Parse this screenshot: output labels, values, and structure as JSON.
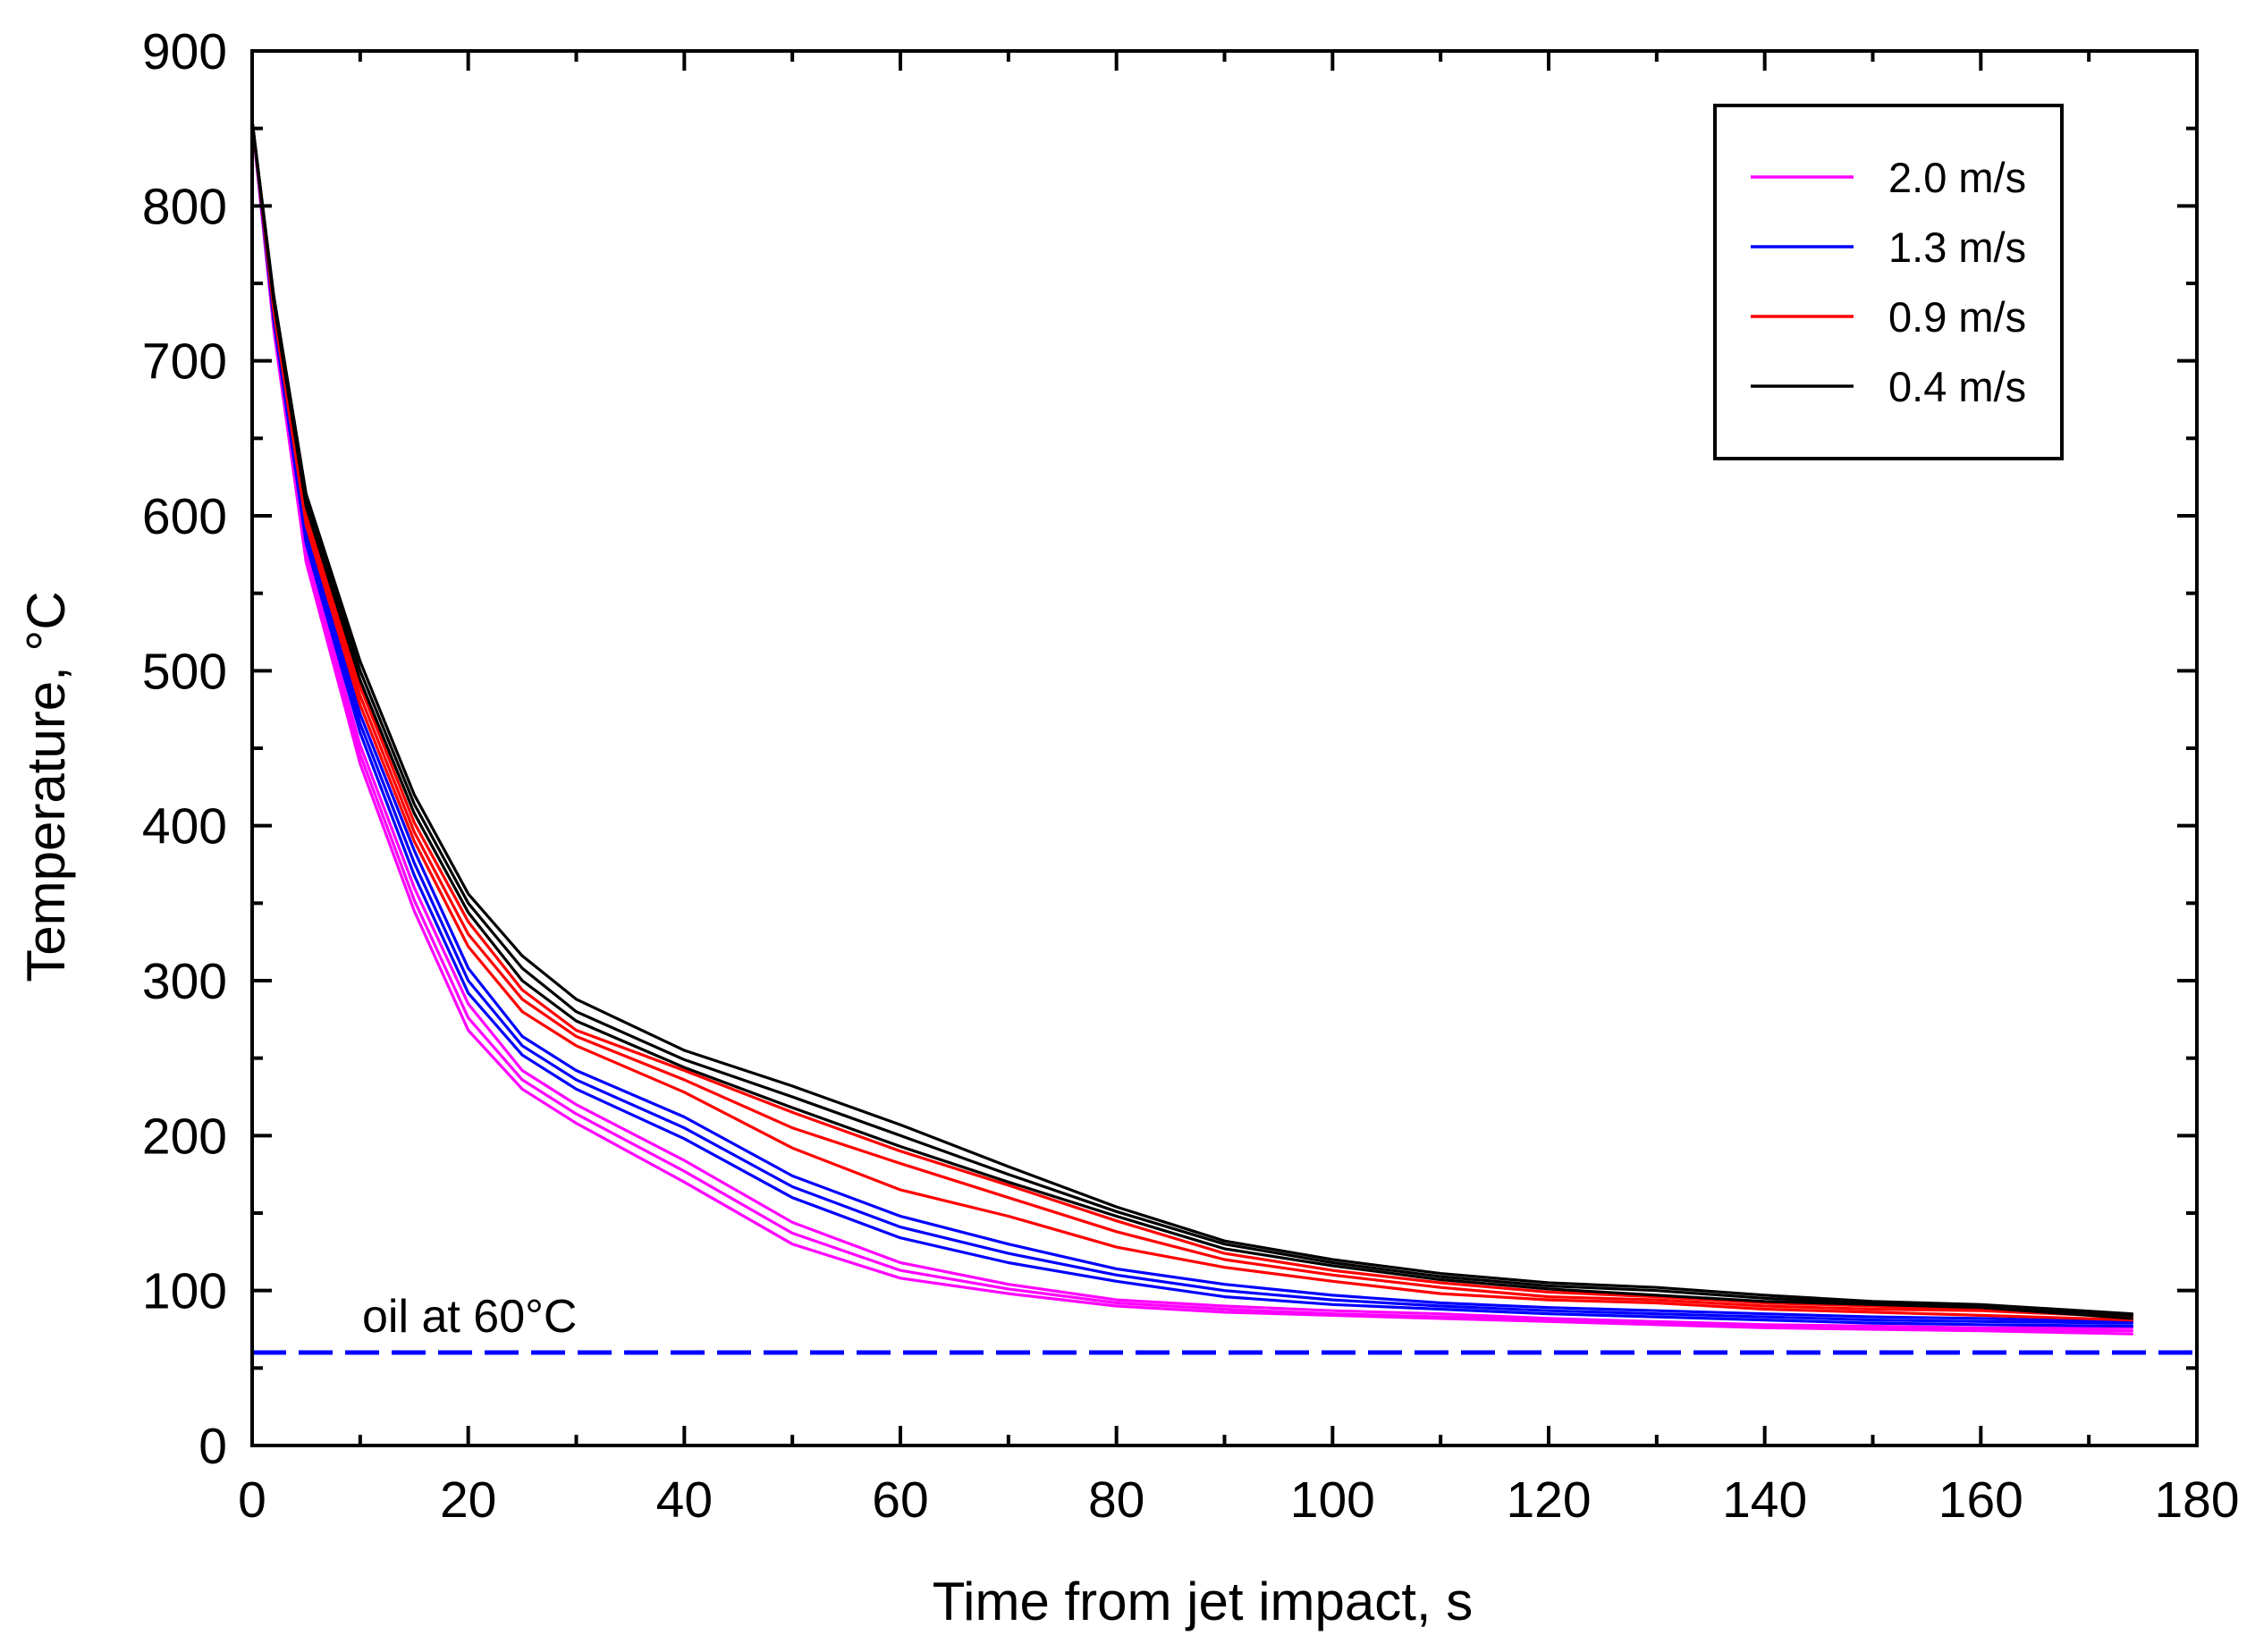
{
  "chart_data": {
    "type": "line",
    "title": "",
    "xlabel": "Time from jet impact, s",
    "ylabel": "Temperature, °C",
    "xlim": [
      0,
      180
    ],
    "ylim": [
      0,
      900
    ],
    "xticks": [
      0,
      20,
      40,
      60,
      80,
      100,
      120,
      140,
      160,
      180
    ],
    "yticks": [
      0,
      100,
      200,
      300,
      400,
      500,
      600,
      700,
      800,
      900
    ],
    "grid": false,
    "legend_position": "top-right",
    "legend": [
      {
        "label": "2.0 m/s",
        "color": "#ff00ff"
      },
      {
        "label": "1.3 m/s",
        "color": "#0000ff"
      },
      {
        "label": "0.9 m/s",
        "color": "#ff0000"
      },
      {
        "label": "0.4 m/s",
        "color": "#000000"
      }
    ],
    "base_x": [
      0,
      2,
      5,
      10,
      15,
      20,
      25,
      30,
      40,
      50,
      60,
      70,
      80,
      90,
      100,
      110,
      120,
      130,
      140,
      150,
      160,
      174
    ],
    "series": [
      {
        "name": "2.0 m/s",
        "color": "#ff00ff",
        "values": [
          855,
          720,
          570,
          440,
          345,
          268,
          230,
          208,
          170,
          130,
          108,
          98,
          90,
          86,
          84,
          82,
          80,
          78,
          76,
          75,
          74,
          72
        ]
      },
      {
        "name": "2.0 m/s",
        "color": "#ff00ff",
        "values": [
          855,
          722,
          574,
          446,
          352,
          276,
          236,
          214,
          177,
          137,
          113,
          101,
          92,
          88,
          85,
          83,
          81,
          79,
          77,
          76,
          75,
          74
        ]
      },
      {
        "name": "2.0 m/s",
        "color": "#ff00ff",
        "values": [
          855,
          724,
          578,
          452,
          360,
          285,
          242,
          220,
          184,
          144,
          118,
          104,
          94,
          90,
          87,
          85,
          82,
          80,
          78,
          77,
          76,
          76
        ]
      },
      {
        "name": "1.3 m/s",
        "color": "#0000ff",
        "values": [
          855,
          726,
          582,
          460,
          368,
          292,
          252,
          230,
          198,
          160,
          134,
          118,
          106,
          96,
          91,
          88,
          85,
          83,
          81,
          79,
          78,
          77
        ]
      },
      {
        "name": "1.3 m/s",
        "color": "#0000ff",
        "values": [
          855,
          728,
          586,
          466,
          376,
          300,
          258,
          236,
          205,
          167,
          141,
          124,
          110,
          100,
          94,
          90,
          87,
          85,
          83,
          81,
          80,
          79
        ]
      },
      {
        "name": "1.3 m/s",
        "color": "#0000ff",
        "values": [
          855,
          730,
          590,
          472,
          384,
          308,
          264,
          242,
          212,
          174,
          148,
          130,
          114,
          104,
          97,
          92,
          89,
          87,
          85,
          83,
          82,
          80
        ]
      },
      {
        "name": "0.9 m/s",
        "color": "#ff0000",
        "values": [
          855,
          732,
          594,
          478,
          390,
          322,
          280,
          258,
          228,
          192,
          165,
          148,
          128,
          115,
          106,
          98,
          94,
          92,
          88,
          86,
          84,
          81
        ]
      },
      {
        "name": "0.9 m/s",
        "color": "#ff0000",
        "values": [
          855,
          734,
          598,
          484,
          396,
          330,
          288,
          264,
          236,
          205,
          182,
          160,
          138,
          120,
          110,
          102,
          96,
          94,
          90,
          88,
          87,
          83
        ]
      },
      {
        "name": "0.9 m/s",
        "color": "#ff0000",
        "values": [
          855,
          736,
          602,
          490,
          402,
          338,
          294,
          268,
          242,
          215,
          190,
          168,
          145,
          124,
          113,
          105,
          99,
          96,
          92,
          90,
          88,
          84
        ]
      },
      {
        "name": "0.4 m/s",
        "color": "#000000",
        "values": [
          855,
          738,
          606,
          494,
          408,
          344,
          300,
          274,
          244,
          218,
          193,
          170,
          148,
          127,
          116,
          107,
          101,
          97,
          93,
          91,
          89,
          82
        ]
      },
      {
        "name": "0.4 m/s",
        "color": "#000000",
        "values": [
          855,
          740,
          610,
          500,
          414,
          350,
          308,
          280,
          249,
          225,
          200,
          175,
          151,
          130,
          118,
          109,
          103,
          100,
          95,
          92,
          90,
          84
        ]
      },
      {
        "name": "0.4 m/s",
        "color": "#000000",
        "values": [
          855,
          742,
          614,
          506,
          420,
          356,
          316,
          288,
          255,
          232,
          207,
          180,
          154,
          132,
          120,
          111,
          105,
          102,
          97,
          93,
          91,
          85
        ]
      }
    ],
    "reference_line": {
      "label": "oil at 60°C",
      "value": 60,
      "x_range": [
        0,
        180
      ],
      "color": "#0000ff",
      "style": "dashed"
    }
  }
}
